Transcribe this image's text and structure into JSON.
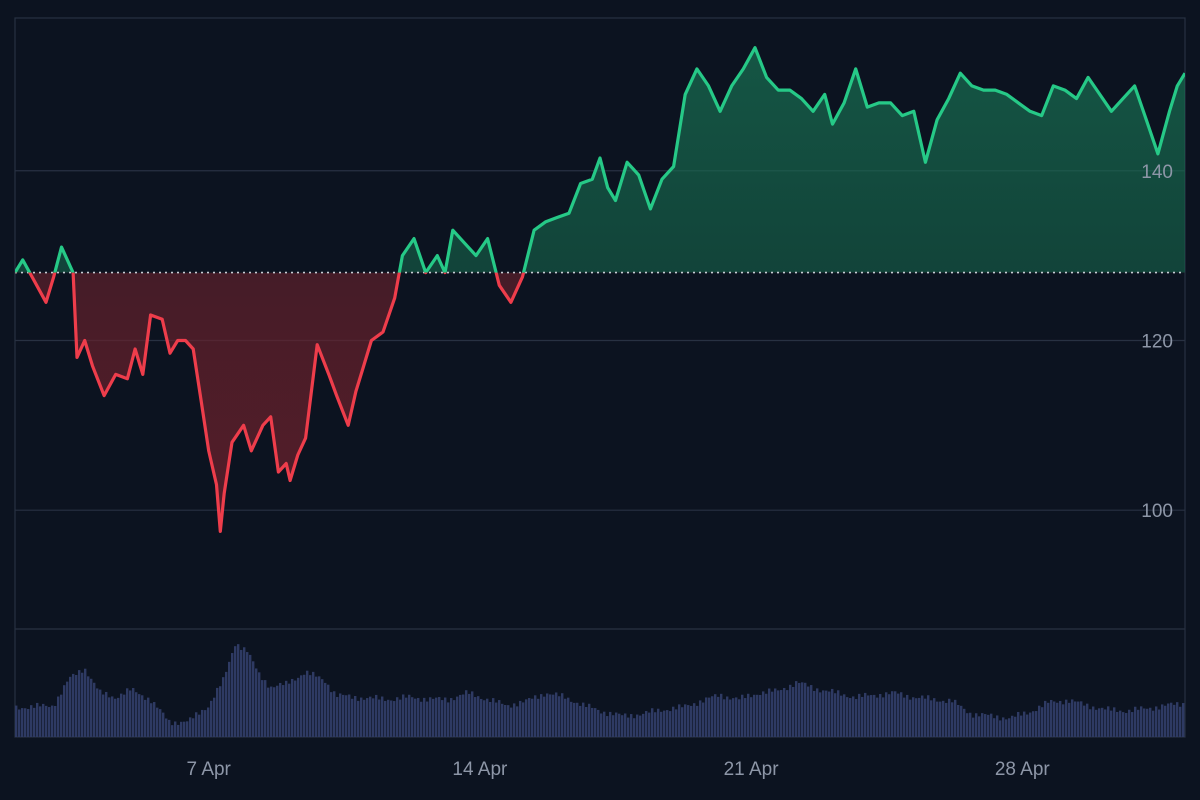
{
  "chart_data": {
    "type": "area",
    "title": "",
    "xlabel": "",
    "ylabel": "",
    "baseline": 128,
    "ylim": [
      86,
      158
    ],
    "y_ticks": [
      100,
      120,
      140
    ],
    "x_ticks": [
      "7 Apr",
      "14 Apr",
      "21 Apr",
      "28 Apr"
    ],
    "x_tick_dates": [
      7,
      14,
      21,
      28
    ],
    "x_range_days": [
      2.0,
      32.2
    ],
    "grid": true,
    "colors": {
      "up": "#26c987",
      "down": "#ee3d4b",
      "volume": "#2e3a63",
      "grid": "#283142",
      "baseline": "#c8ccd4"
    },
    "series": [
      {
        "x": [
          2.0,
          2.2,
          2.5,
          2.8,
          3.0,
          3.2,
          3.5,
          3.6,
          3.8,
          4.0,
          4.3,
          4.6,
          4.9,
          5.1,
          5.3,
          5.5,
          5.8,
          6.0,
          6.2,
          6.4,
          6.6,
          6.8,
          7.0,
          7.2,
          7.3,
          7.4,
          7.6,
          7.9,
          8.1,
          8.4,
          8.6,
          8.8,
          9.0,
          9.1,
          9.3,
          9.5,
          9.8,
          10.1,
          10.3,
          10.6,
          10.8,
          11.0,
          11.2,
          11.5,
          11.8,
          12.0,
          12.3,
          12.6,
          12.9,
          13.1,
          13.3,
          13.6,
          13.9,
          14.2,
          14.5,
          14.8,
          15.1,
          15.4,
          15.7,
          16.0,
          16.3,
          16.6,
          16.9,
          17.1,
          17.3,
          17.5,
          17.8,
          18.1,
          18.4,
          18.7,
          19.0,
          19.3,
          19.6,
          19.9,
          20.2,
          20.5,
          20.8,
          21.1,
          21.4,
          21.7,
          22.0,
          22.3,
          22.6,
          22.9,
          23.1,
          23.4,
          23.7,
          24.0,
          24.3,
          24.6,
          24.9,
          25.2,
          25.5,
          25.8,
          26.1,
          26.4,
          26.7,
          27.0,
          27.3,
          27.6,
          27.9,
          28.2,
          28.5,
          28.8,
          29.1,
          29.4,
          29.7,
          30.0,
          30.3,
          30.6,
          30.9,
          31.2,
          31.5,
          31.8,
          32.0,
          32.2
        ],
        "y": [
          128,
          129.5,
          127,
          124.5,
          127.5,
          131,
          128,
          118,
          120,
          117,
          113.5,
          116,
          115.5,
          119,
          116,
          123,
          122.5,
          118.5,
          120,
          120,
          119,
          113,
          107,
          103,
          97.5,
          102,
          108,
          110,
          107,
          110,
          111,
          104.5,
          105.5,
          103.5,
          106.5,
          108.5,
          119.5,
          116,
          113.5,
          110,
          114,
          117,
          120,
          121,
          125,
          130,
          132,
          128,
          130,
          128,
          133,
          131.5,
          130,
          132,
          126.5,
          124.5,
          127.5,
          133,
          134,
          134.5,
          135,
          138.5,
          139,
          141.5,
          138,
          136.5,
          141,
          139.5,
          135.5,
          139,
          140.5,
          149,
          152,
          150,
          147,
          150,
          152,
          154.5,
          151,
          149.5,
          149.5,
          148.5,
          147,
          149,
          145.5,
          148,
          152,
          147.5,
          148,
          148,
          146.5,
          147,
          141,
          146,
          148.5,
          151.5,
          150,
          149.5,
          149.5,
          149,
          148,
          147,
          146.5,
          150,
          149.5,
          148.5,
          151,
          149,
          147,
          148.5,
          150,
          146,
          142,
          147,
          150,
          151.5
        ]
      }
    ],
    "volume": {
      "x": [
        2.0,
        3.0,
        3.4,
        3.8,
        4.2,
        4.6,
        5.0,
        5.5,
        6.0,
        6.5,
        7.0,
        7.4,
        7.7,
        8.0,
        8.3,
        8.6,
        9.0,
        9.5,
        10.0,
        10.3,
        10.7,
        11.2,
        11.7,
        12.2,
        12.7,
        13.2,
        13.7,
        14.2,
        14.7,
        15.2,
        15.7,
        16.2,
        16.7,
        17.2,
        17.7,
        18.2,
        18.7,
        19.2,
        19.7,
        20.2,
        20.7,
        21.2,
        21.7,
        22.2,
        22.7,
        23.2,
        23.7,
        24.2,
        24.7,
        25.2,
        25.7,
        26.2,
        26.7,
        27.2,
        27.7,
        28.2,
        28.7,
        29.2,
        29.7,
        30.2,
        30.7,
        31.2,
        31.7,
        32.2
      ],
      "v": [
        0.28,
        0.3,
        0.55,
        0.66,
        0.42,
        0.38,
        0.45,
        0.36,
        0.14,
        0.15,
        0.3,
        0.55,
        0.9,
        0.82,
        0.6,
        0.48,
        0.5,
        0.62,
        0.54,
        0.4,
        0.38,
        0.37,
        0.36,
        0.38,
        0.36,
        0.36,
        0.42,
        0.36,
        0.3,
        0.34,
        0.42,
        0.38,
        0.3,
        0.24,
        0.2,
        0.22,
        0.26,
        0.28,
        0.34,
        0.4,
        0.36,
        0.42,
        0.44,
        0.52,
        0.46,
        0.42,
        0.38,
        0.4,
        0.42,
        0.38,
        0.36,
        0.34,
        0.22,
        0.2,
        0.18,
        0.24,
        0.33,
        0.35,
        0.3,
        0.26,
        0.25,
        0.27,
        0.3,
        0.32
      ]
    }
  }
}
